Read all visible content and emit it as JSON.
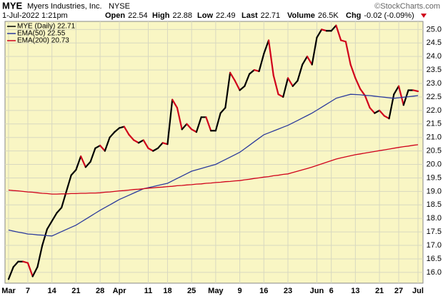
{
  "header": {
    "symbol": "MYE",
    "company": "Myers Industries, Inc.",
    "exchange": "NYSE",
    "source": "©StockCharts.com",
    "timestamp": "1-Jul-2022 1:21pm",
    "quote": [
      {
        "label": "Open",
        "value": "22.54"
      },
      {
        "label": "High",
        "value": "22.88"
      },
      {
        "label": "Low",
        "value": "22.49"
      },
      {
        "label": "Last",
        "value": "22.71"
      },
      {
        "label": "Volume",
        "value": "26.5K"
      },
      {
        "label": "Chg",
        "value": "-0.02 (-0.09%)"
      }
    ]
  },
  "chart_data": {
    "type": "line",
    "categories": [
      "Mar",
      null,
      null,
      null,
      "7",
      null,
      null,
      null,
      null,
      "14",
      null,
      null,
      null,
      null,
      "21",
      null,
      null,
      null,
      null,
      "28",
      null,
      null,
      null,
      "Apr",
      null,
      null,
      null,
      null,
      null,
      "11",
      null,
      null,
      null,
      "18",
      null,
      null,
      null,
      null,
      "25",
      null,
      null,
      null,
      null,
      "May",
      null,
      null,
      null,
      null,
      "9",
      null,
      null,
      null,
      null,
      "16",
      null,
      null,
      null,
      null,
      "23",
      null,
      null,
      null,
      null,
      null,
      "Jun",
      null,
      null,
      "6",
      null,
      null,
      null,
      null,
      "13",
      null,
      null,
      null,
      null,
      "21",
      null,
      null,
      null,
      "27",
      null,
      null,
      null,
      "Jul"
    ],
    "series": [
      {
        "name": "MYE (Daily) 22.71",
        "color": "#000000",
        "down_color": "#d0021b",
        "values": [
          15.75,
          16.2,
          16.4,
          16.4,
          16.35,
          15.85,
          16.2,
          17.0,
          17.6,
          17.9,
          18.2,
          18.4,
          19.0,
          19.6,
          19.8,
          20.3,
          19.9,
          20.1,
          20.6,
          20.7,
          20.5,
          21.0,
          21.2,
          21.35,
          21.4,
          21.1,
          20.9,
          20.8,
          20.9,
          20.6,
          20.5,
          20.6,
          20.8,
          20.75,
          22.4,
          22.1,
          21.3,
          21.5,
          21.3,
          21.2,
          21.75,
          21.75,
          21.25,
          21.25,
          21.9,
          22.1,
          23.4,
          23.1,
          22.75,
          22.9,
          23.35,
          23.5,
          23.45,
          24.1,
          24.6,
          23.3,
          22.6,
          22.5,
          23.2,
          22.9,
          23.1,
          23.7,
          24.0,
          23.7,
          24.7,
          25.0,
          24.95,
          24.95,
          25.15,
          24.6,
          24.55,
          23.7,
          23.2,
          22.8,
          22.55,
          22.1,
          21.9,
          22.0,
          21.8,
          21.7,
          22.6,
          22.9,
          22.2,
          22.75,
          22.75,
          22.71
        ]
      },
      {
        "name": "EMA(50) 22.55",
        "color": "#2b3a9c",
        "values": [
          17.57,
          17.53,
          17.49,
          17.46,
          17.42,
          17.41,
          17.39,
          17.38,
          17.36,
          17.35,
          17.43,
          17.51,
          17.59,
          17.67,
          17.75,
          17.86,
          17.97,
          18.08,
          18.19,
          18.3,
          18.4,
          18.5,
          18.6,
          18.7,
          18.78,
          18.86,
          18.94,
          19.02,
          19.1,
          19.14,
          19.18,
          19.22,
          19.26,
          19.3,
          19.39,
          19.48,
          19.57,
          19.66,
          19.75,
          19.8,
          19.85,
          19.9,
          19.95,
          20.0,
          20.09,
          20.18,
          20.27,
          20.36,
          20.45,
          20.58,
          20.71,
          20.84,
          20.97,
          21.1,
          21.17,
          21.24,
          21.31,
          21.38,
          21.45,
          21.54,
          21.63,
          21.72,
          21.81,
          21.9,
          22.01,
          22.12,
          22.23,
          22.34,
          22.45,
          22.5,
          22.55,
          22.6,
          22.59,
          22.58,
          22.56,
          22.55,
          22.53,
          22.51,
          22.49,
          22.47,
          22.45,
          22.47,
          22.49,
          22.51,
          22.53,
          22.55
        ]
      },
      {
        "name": "EMA(200) 20.73",
        "color": "#d0021b",
        "values": [
          19.05,
          19.03,
          19.02,
          19.0,
          18.98,
          18.97,
          18.95,
          18.93,
          18.92,
          18.9,
          18.9,
          18.91,
          18.91,
          18.92,
          18.92,
          18.93,
          18.93,
          18.94,
          18.94,
          18.95,
          18.97,
          18.98,
          19.0,
          19.02,
          19.03,
          19.05,
          19.07,
          19.08,
          19.1,
          19.12,
          19.13,
          19.15,
          19.16,
          19.18,
          19.19,
          19.21,
          19.22,
          19.24,
          19.25,
          19.27,
          19.28,
          19.3,
          19.31,
          19.33,
          19.34,
          19.36,
          19.37,
          19.39,
          19.4,
          19.43,
          19.45,
          19.48,
          19.5,
          19.53,
          19.55,
          19.58,
          19.6,
          19.63,
          19.65,
          19.7,
          19.75,
          19.8,
          19.85,
          19.9,
          19.96,
          20.02,
          20.08,
          20.14,
          20.2,
          20.24,
          20.28,
          20.32,
          20.36,
          20.39,
          20.42,
          20.45,
          20.48,
          20.51,
          20.54,
          20.57,
          20.6,
          20.63,
          20.66,
          20.68,
          20.71,
          20.73
        ]
      }
    ],
    "ylim": [
      15.6,
      25.3
    ],
    "yticks": [
      {
        "value": 16,
        "label": "16.0"
      },
      {
        "value": 16.5,
        "label": "16.5"
      },
      {
        "value": 17,
        "label": "17.0"
      },
      {
        "value": 17.5,
        "label": "17.5"
      },
      {
        "value": 18,
        "label": "18.0"
      },
      {
        "value": 18.5,
        "label": "18.5"
      },
      {
        "value": 19,
        "label": "19.0"
      },
      {
        "value": 19.5,
        "label": "19.5"
      },
      {
        "value": 20,
        "label": "20.0"
      },
      {
        "value": 20.5,
        "label": "20.5"
      },
      {
        "value": 21,
        "label": "21.0"
      },
      {
        "value": 21.5,
        "label": "21.5"
      },
      {
        "value": 22,
        "label": "22.0"
      },
      {
        "value": 22.5,
        "label": "22.5"
      },
      {
        "value": 23,
        "label": "23.0"
      },
      {
        "value": 23.5,
        "label": "23.5"
      },
      {
        "value": 24,
        "label": "24.0"
      },
      {
        "value": 24.5,
        "label": "24.5"
      },
      {
        "value": 25,
        "label": "25.0"
      }
    ],
    "grid": true,
    "background": "#f9f6c4"
  }
}
